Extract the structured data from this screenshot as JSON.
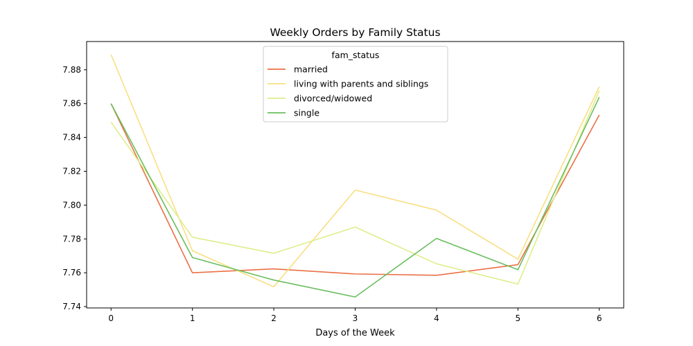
{
  "chart_data": {
    "type": "line",
    "title": "Weekly Orders by Family Status",
    "xlabel": "Days of the Week",
    "ylabel": "",
    "x": [
      0,
      1,
      2,
      3,
      4,
      5,
      6
    ],
    "xlim": [
      -0.3,
      6.3
    ],
    "ylim": [
      7.7392,
      7.8967
    ],
    "yticks": [
      "7.74",
      "7.76",
      "7.78",
      "7.80",
      "7.82",
      "7.84",
      "7.86",
      "7.88"
    ],
    "xticks": [
      "0",
      "1",
      "2",
      "3",
      "4",
      "5",
      "6"
    ],
    "grid": false,
    "legend": {
      "title": "fam_status",
      "position": "top-center"
    },
    "series": [
      {
        "name": "married",
        "color": "#eb6f45",
        "values": [
          7.86,
          7.76,
          7.7623,
          7.7593,
          7.7585,
          7.7648,
          7.8533
        ]
      },
      {
        "name": "living with parents and siblings",
        "color": "#f8df82",
        "values": [
          7.889,
          7.773,
          7.7517,
          7.8089,
          7.797,
          7.768,
          7.87
        ]
      },
      {
        "name": "divorced/widowed",
        "color": "#dfed89",
        "values": [
          7.849,
          7.781,
          7.7715,
          7.787,
          7.7653,
          7.7533,
          7.8677
        ]
      },
      {
        "name": "single",
        "color": "#6abe5f",
        "values": [
          7.86,
          7.769,
          7.7557,
          7.7457,
          7.7803,
          7.7618,
          7.8638
        ]
      }
    ]
  }
}
